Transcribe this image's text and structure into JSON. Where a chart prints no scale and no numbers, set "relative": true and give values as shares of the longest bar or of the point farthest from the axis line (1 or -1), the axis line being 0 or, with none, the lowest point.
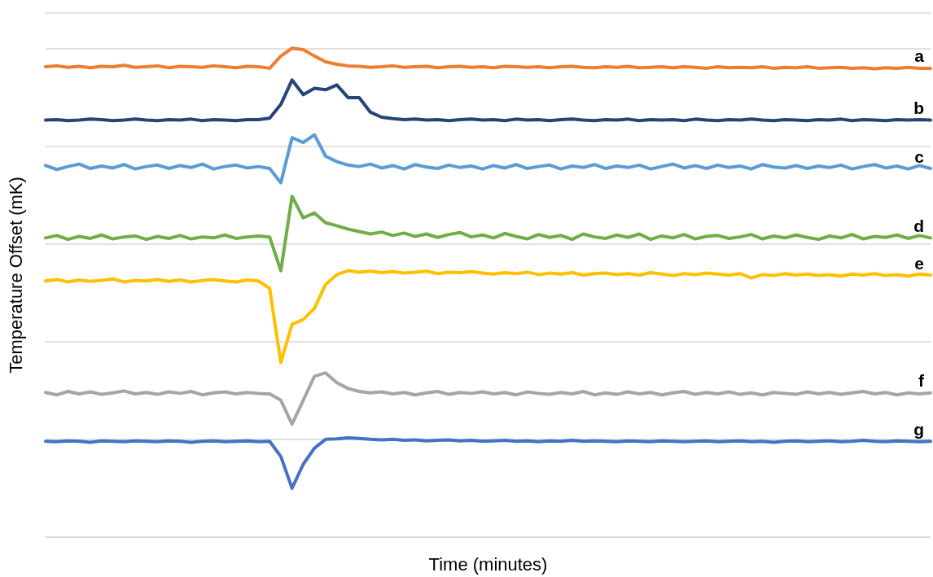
{
  "chart_data": {
    "type": "line",
    "relative": true,
    "xlabel": "Time (minutes)",
    "ylabel": "Temperature Offset (mK)",
    "grid": "y",
    "legend": false,
    "marker": "none",
    "line_style": "solid",
    "categories": [
      null,
      null,
      null,
      null,
      null,
      null,
      null,
      null,
      null,
      null,
      null,
      null,
      null,
      null,
      null,
      null,
      null,
      null,
      null,
      null,
      null,
      null,
      null,
      null,
      null,
      null,
      null,
      null,
      null,
      null,
      null,
      null,
      null,
      null,
      null,
      null,
      null,
      null,
      null,
      null,
      null,
      null,
      null,
      null,
      null,
      null,
      null,
      null,
      null,
      null,
      null,
      null,
      null,
      null,
      null,
      null,
      null,
      null,
      null,
      null,
      null,
      null,
      null,
      null,
      null,
      null,
      null,
      null,
      null,
      null,
      null,
      null,
      null,
      null,
      null,
      null,
      null,
      null,
      null,
      null
    ],
    "series": [
      {
        "name": "a",
        "color": "#ed7d31",
        "values": [
          0.962,
          0.964,
          0.961,
          0.963,
          0.96,
          0.963,
          0.962,
          0.965,
          0.961,
          0.962,
          0.964,
          0.96,
          0.963,
          0.962,
          0.961,
          0.964,
          0.962,
          0.96,
          0.963,
          0.962,
          0.959,
          0.984,
          1,
          0.997,
          0.984,
          0.972,
          0.967,
          0.964,
          0.963,
          0.961,
          0.962,
          0.964,
          0.961,
          0.962,
          0.963,
          0.96,
          0.962,
          0.963,
          0.961,
          0.962,
          0.96,
          0.963,
          0.962,
          0.961,
          0.962,
          0.96,
          0.962,
          0.963,
          0.961,
          0.96,
          0.962,
          0.961,
          0.963,
          0.96,
          0.961,
          0.962,
          0.96,
          0.962,
          0.961,
          0.959,
          0.962,
          0.96,
          0.961,
          0.96,
          0.962,
          0.959,
          0.961,
          0.96,
          0.962,
          0.959,
          0.96,
          0.961,
          0.959,
          0.96,
          0.958,
          0.96,
          0.959,
          0.961,
          0.959,
          0.959
        ]
      },
      {
        "name": "b",
        "color": "#264478",
        "values": [
          0.853,
          0.854,
          0.852,
          0.853,
          0.855,
          0.854,
          0.852,
          0.853,
          0.855,
          0.853,
          0.852,
          0.854,
          0.853,
          0.855,
          0.852,
          0.854,
          0.853,
          0.852,
          0.854,
          0.854,
          0.857,
          0.885,
          0.935,
          0.905,
          0.918,
          0.915,
          0.925,
          0.899,
          0.899,
          0.869,
          0.859,
          0.856,
          0.854,
          0.855,
          0.853,
          0.854,
          0.852,
          0.854,
          0.855,
          0.853,
          0.854,
          0.852,
          0.855,
          0.853,
          0.854,
          0.852,
          0.854,
          0.855,
          0.853,
          0.852,
          0.854,
          0.853,
          0.855,
          0.852,
          0.854,
          0.853,
          0.854,
          0.852,
          0.855,
          0.853,
          0.852,
          0.854,
          0.853,
          0.855,
          0.853,
          0.852,
          0.854,
          0.853,
          0.852,
          0.854,
          0.853,
          0.855,
          0.852,
          0.854,
          0.853,
          0.852,
          0.854,
          0.853,
          0.854,
          0.853
        ]
      },
      {
        "name": "c",
        "color": "#5b9bd5",
        "values": [
          0.76,
          0.752,
          0.758,
          0.763,
          0.754,
          0.759,
          0.755,
          0.762,
          0.753,
          0.758,
          0.761,
          0.754,
          0.76,
          0.756,
          0.763,
          0.753,
          0.758,
          0.761,
          0.755,
          0.758,
          0.754,
          0.725,
          0.817,
          0.807,
          0.823,
          0.779,
          0.768,
          0.761,
          0.758,
          0.763,
          0.755,
          0.76,
          0.753,
          0.762,
          0.757,
          0.754,
          0.761,
          0.756,
          0.759,
          0.753,
          0.76,
          0.755,
          0.762,
          0.754,
          0.758,
          0.761,
          0.753,
          0.759,
          0.756,
          0.762,
          0.754,
          0.759,
          0.756,
          0.761,
          0.753,
          0.758,
          0.763,
          0.755,
          0.76,
          0.754,
          0.761,
          0.756,
          0.759,
          0.753,
          0.762,
          0.757,
          0.755,
          0.76,
          0.754,
          0.759,
          0.756,
          0.761,
          0.753,
          0.758,
          0.762,
          0.755,
          0.759,
          0.753,
          0.76,
          0.754
        ]
      },
      {
        "name": "d",
        "color": "#70ad47",
        "values": [
          0.612,
          0.617,
          0.609,
          0.615,
          0.611,
          0.618,
          0.61,
          0.614,
          0.616,
          0.609,
          0.615,
          0.611,
          0.617,
          0.61,
          0.614,
          0.612,
          0.618,
          0.611,
          0.614,
          0.616,
          0.614,
          0.545,
          0.697,
          0.653,
          0.663,
          0.643,
          0.637,
          0.63,
          0.625,
          0.62,
          0.624,
          0.617,
          0.622,
          0.615,
          0.62,
          0.613,
          0.619,
          0.623,
          0.614,
          0.618,
          0.612,
          0.621,
          0.615,
          0.61,
          0.619,
          0.613,
          0.617,
          0.609,
          0.62,
          0.614,
          0.611,
          0.618,
          0.613,
          0.62,
          0.609,
          0.616,
          0.612,
          0.619,
          0.61,
          0.615,
          0.617,
          0.611,
          0.614,
          0.619,
          0.61,
          0.616,
          0.612,
          0.618,
          0.613,
          0.609,
          0.616,
          0.612,
          0.619,
          0.61,
          0.615,
          0.613,
          0.618,
          0.611,
          0.617,
          0.612
        ]
      },
      {
        "name": "e",
        "color": "#ffc000",
        "values": [
          0.524,
          0.527,
          0.522,
          0.526,
          0.523,
          0.525,
          0.528,
          0.522,
          0.525,
          0.524,
          0.527,
          0.523,
          0.526,
          0.522,
          0.525,
          0.527,
          0.524,
          0.522,
          0.526,
          0.524,
          0.509,
          0.357,
          0.435,
          0.445,
          0.468,
          0.517,
          0.537,
          0.545,
          0.542,
          0.544,
          0.541,
          0.543,
          0.54,
          0.542,
          0.544,
          0.539,
          0.542,
          0.541,
          0.543,
          0.54,
          0.538,
          0.541,
          0.539,
          0.542,
          0.537,
          0.54,
          0.538,
          0.541,
          0.536,
          0.539,
          0.54,
          0.537,
          0.539,
          0.536,
          0.541,
          0.538,
          0.535,
          0.539,
          0.537,
          0.54,
          0.538,
          0.536,
          0.539,
          0.53,
          0.537,
          0.535,
          0.539,
          0.536,
          0.538,
          0.535,
          0.537,
          0.534,
          0.538,
          0.536,
          0.539,
          0.535,
          0.537,
          0.534,
          0.538,
          0.536
        ]
      },
      {
        "name": "f",
        "color": "#a5a5a5",
        "values": [
          0.296,
          0.291,
          0.298,
          0.293,
          0.297,
          0.292,
          0.295,
          0.299,
          0.293,
          0.296,
          0.292,
          0.297,
          0.294,
          0.298,
          0.291,
          0.295,
          0.297,
          0.293,
          0.296,
          0.294,
          0.293,
          0.28,
          0.231,
          0.28,
          0.329,
          0.336,
          0.316,
          0.304,
          0.298,
          0.295,
          0.297,
          0.293,
          0.296,
          0.291,
          0.295,
          0.298,
          0.292,
          0.296,
          0.294,
          0.297,
          0.293,
          0.296,
          0.291,
          0.297,
          0.294,
          0.292,
          0.296,
          0.293,
          0.298,
          0.291,
          0.295,
          0.292,
          0.297,
          0.293,
          0.296,
          0.291,
          0.295,
          0.298,
          0.292,
          0.296,
          0.293,
          0.297,
          0.292,
          0.295,
          0.291,
          0.296,
          0.294,
          0.292,
          0.297,
          0.293,
          0.296,
          0.292,
          0.295,
          0.298,
          0.293,
          0.296,
          0.291,
          0.295,
          0.293,
          0.295
        ]
      },
      {
        "name": "g",
        "color": "#4472c4",
        "values": [
          0.196,
          0.195,
          0.197,
          0.196,
          0.194,
          0.197,
          0.196,
          0.195,
          0.197,
          0.196,
          0.195,
          0.197,
          0.196,
          0.194,
          0.196,
          0.197,
          0.195,
          0.196,
          0.197,
          0.195,
          0.196,
          0.165,
          0.1,
          0.149,
          0.182,
          0.2,
          0.201,
          0.203,
          0.202,
          0.2,
          0.199,
          0.2,
          0.198,
          0.199,
          0.197,
          0.198,
          0.199,
          0.197,
          0.198,
          0.196,
          0.197,
          0.198,
          0.196,
          0.197,
          0.195,
          0.197,
          0.196,
          0.198,
          0.196,
          0.197,
          0.196,
          0.195,
          0.197,
          0.196,
          0.195,
          0.197,
          0.196,
          0.195,
          0.196,
          0.197,
          0.195,
          0.196,
          0.197,
          0.195,
          0.196,
          0.194,
          0.196,
          0.197,
          0.195,
          0.196,
          0.197,
          0.195,
          0.196,
          0.198,
          0.196,
          0.195,
          0.197,
          0.196,
          0.195,
          0.196
        ]
      }
    ]
  }
}
